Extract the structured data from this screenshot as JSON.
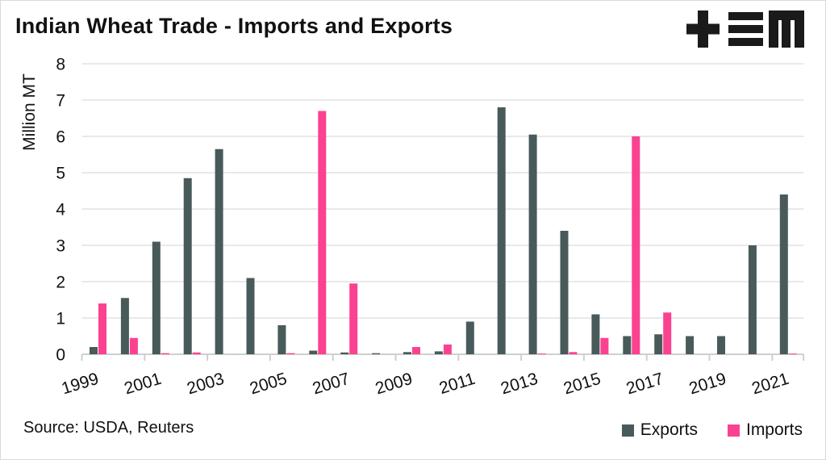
{
  "header": {
    "title": "Indian Wheat Trade - Imports and Exports",
    "logo": "plus-bars-m-logo"
  },
  "chart_data": {
    "type": "bar",
    "title": "Indian Wheat Trade - Imports and Exports",
    "xlabel": "",
    "ylabel": "Million MT",
    "ylim": [
      0,
      8
    ],
    "yticks": [
      0,
      1,
      2,
      3,
      4,
      5,
      6,
      7,
      8
    ],
    "grid": "horizontal",
    "legend_position": "bottom-right",
    "categories": [
      1999,
      2000,
      2001,
      2002,
      2003,
      2004,
      2005,
      2006,
      2007,
      2008,
      2009,
      2010,
      2011,
      2012,
      2013,
      2014,
      2015,
      2016,
      2017,
      2018,
      2019,
      2020,
      2021
    ],
    "xtick_labels": [
      "1999",
      "2001",
      "2003",
      "2005",
      "2007",
      "2009",
      "2011",
      "2013",
      "2015",
      "2017",
      "2019",
      "2021"
    ],
    "series": [
      {
        "name": "Exports",
        "color": "#495a5a",
        "values": [
          0.2,
          1.55,
          3.1,
          4.85,
          5.65,
          2.1,
          0.8,
          0.1,
          0.05,
          0.03,
          0.06,
          0.08,
          0.9,
          6.8,
          6.05,
          3.4,
          1.1,
          0.5,
          0.55,
          0.5,
          0.5,
          3.0,
          4.4
        ]
      },
      {
        "name": "Imports",
        "color": "#fb4291",
        "values": [
          1.4,
          0.45,
          0.03,
          0.05,
          0,
          0,
          0.03,
          6.7,
          1.95,
          0,
          0.2,
          0.27,
          0,
          0,
          0.02,
          0.06,
          0.45,
          6.0,
          1.15,
          0,
          0,
          0,
          0.02
        ]
      }
    ]
  },
  "legend": {
    "items": [
      {
        "label": "Exports",
        "color": "#495a5a"
      },
      {
        "label": "Imports",
        "color": "#fb4291"
      }
    ]
  },
  "footer": {
    "source": "Source: USDA, Reuters"
  },
  "colors": {
    "exports": "#495a5a",
    "imports": "#fb4291",
    "grid": "#e9e9e9",
    "axis": "#cfcfcf",
    "text": "#111111",
    "background": "#ffffff"
  }
}
